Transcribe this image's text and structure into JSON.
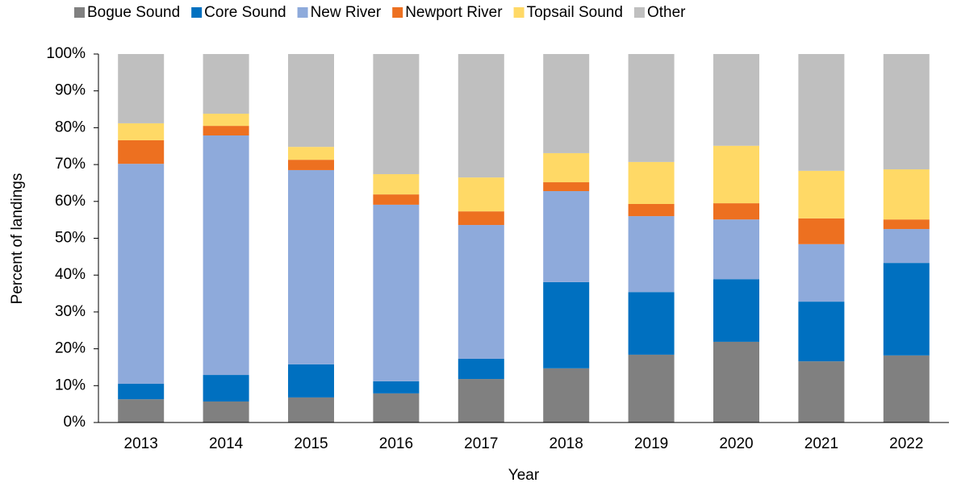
{
  "chart_data": {
    "type": "stacked_bar",
    "x_label": "Year",
    "y_label": "Percent of landings",
    "categories": [
      "2013",
      "2014",
      "2015",
      "2016",
      "2017",
      "2018",
      "2019",
      "2020",
      "2021",
      "2022"
    ],
    "series": [
      {
        "name": "Bogue Sound",
        "color": "#808080",
        "values": [
          6.3,
          5.7,
          6.8,
          7.9,
          11.8,
          14.7,
          18.4,
          21.9,
          16.6,
          18.2
        ]
      },
      {
        "name": "Core Sound",
        "color": "#0070c0",
        "values": [
          4.2,
          7.2,
          9.0,
          3.3,
          5.5,
          23.4,
          17.0,
          17.0,
          16.2,
          25.1
        ]
      },
      {
        "name": "New River",
        "color": "#8eaadb",
        "values": [
          59.7,
          65.0,
          52.7,
          47.9,
          36.3,
          24.7,
          20.6,
          16.2,
          15.6,
          9.2
        ]
      },
      {
        "name": "Newport River",
        "color": "#ed7020",
        "values": [
          6.4,
          2.6,
          2.8,
          2.8,
          3.7,
          2.4,
          3.3,
          4.4,
          7.0,
          2.6
        ]
      },
      {
        "name": "Topsail Sound",
        "color": "#ffd966",
        "values": [
          4.6,
          3.3,
          3.5,
          5.5,
          9.2,
          7.9,
          11.4,
          15.6,
          12.9,
          13.6
        ]
      },
      {
        "name": "Other",
        "color": "#bfbfbf",
        "values": [
          18.8,
          16.2,
          25.2,
          32.6,
          33.5,
          26.9,
          29.3,
          24.9,
          31.7,
          31.3
        ]
      }
    ],
    "ylim": [
      0,
      100
    ],
    "yticks": [
      {
        "value": 0,
        "label": "0%"
      },
      {
        "value": 10,
        "label": "10%"
      },
      {
        "value": 20,
        "label": "20%"
      },
      {
        "value": 30,
        "label": "30%"
      },
      {
        "value": 40,
        "label": "40%"
      },
      {
        "value": 50,
        "label": "50%"
      },
      {
        "value": 60,
        "label": "60%"
      },
      {
        "value": 70,
        "label": "70%"
      },
      {
        "value": 80,
        "label": "80%"
      },
      {
        "value": 90,
        "label": "90%"
      },
      {
        "value": 100,
        "label": "100%"
      }
    ],
    "legend": "top"
  }
}
